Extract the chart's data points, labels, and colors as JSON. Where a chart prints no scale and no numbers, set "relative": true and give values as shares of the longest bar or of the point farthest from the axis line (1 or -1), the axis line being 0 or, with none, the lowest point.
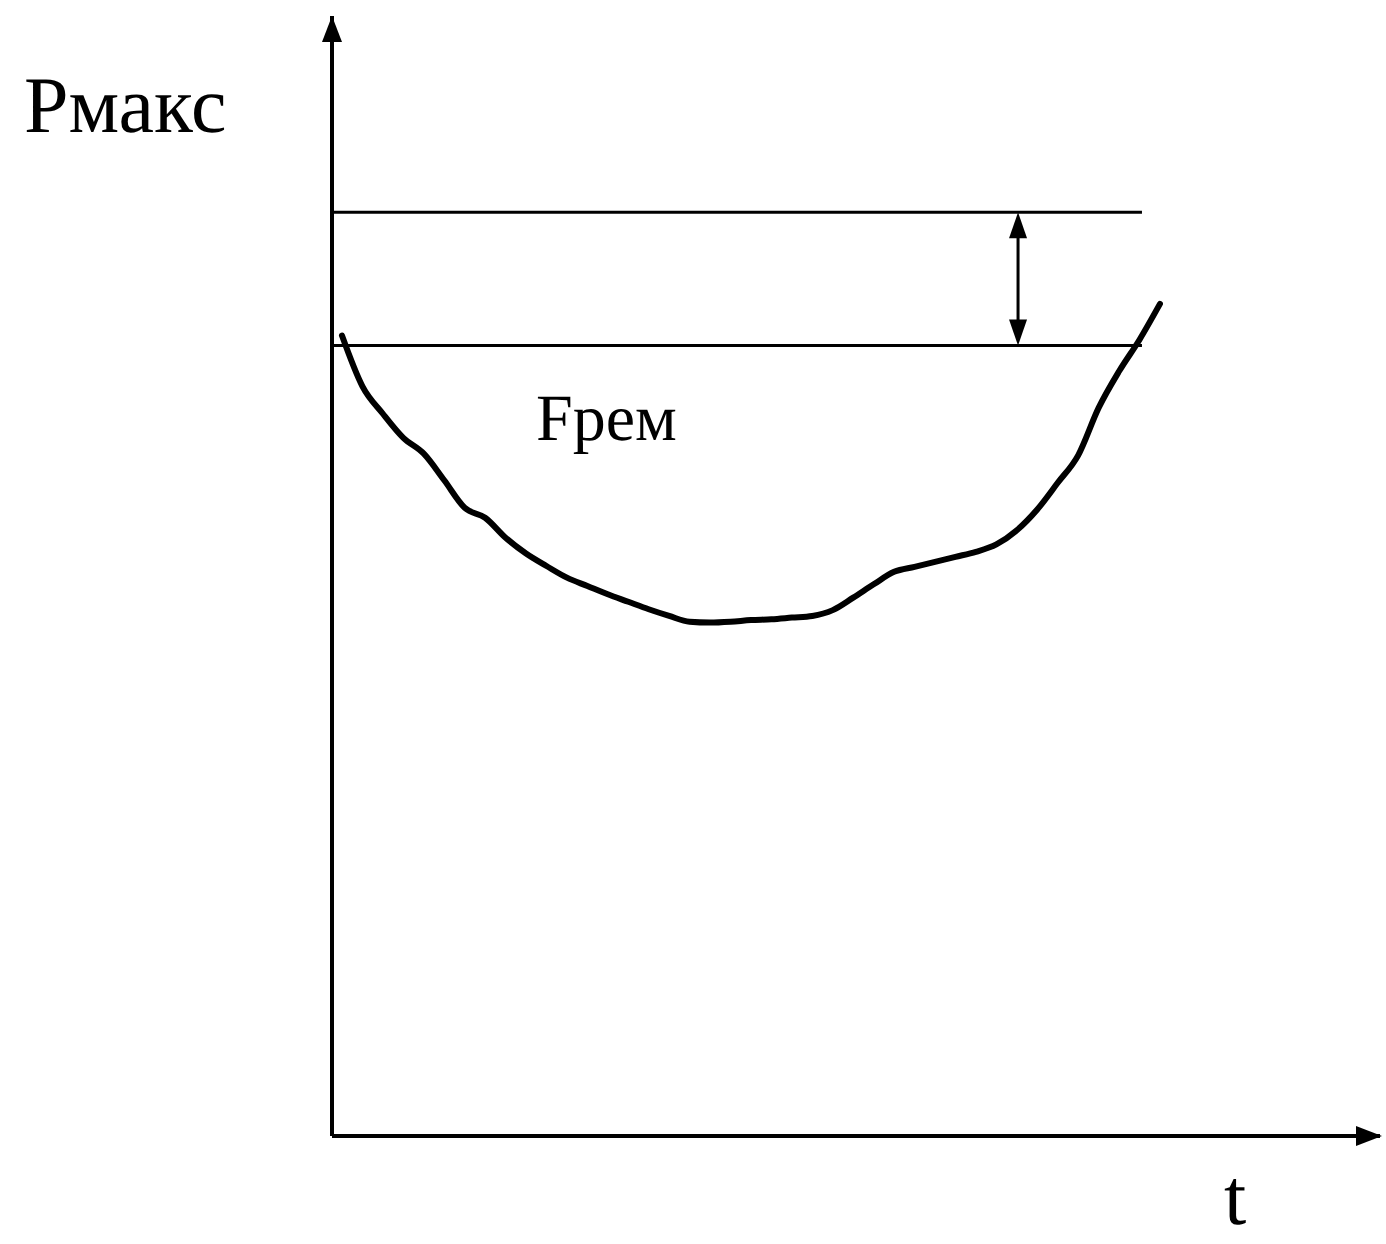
{
  "chart_data": {
    "type": "line",
    "xlabel": "t",
    "ylabel": "Рмакс",
    "annotations": [
      "Fрем"
    ],
    "relative": true,
    "categories": [
      null,
      null,
      null,
      null,
      null,
      null,
      null,
      null,
      null,
      null,
      null,
      null,
      null,
      null,
      null,
      null,
      null,
      null,
      null,
      null,
      null,
      null,
      null,
      null,
      null,
      null,
      null,
      null,
      null,
      null,
      null,
      null,
      null,
      null,
      null,
      null,
      null,
      null,
      null,
      null,
      null
    ],
    "values": [
      0.962,
      0.901,
      0.868,
      0.839,
      0.82,
      0.788,
      0.755,
      0.743,
      0.719,
      0.7,
      0.685,
      0.671,
      0.661,
      0.651,
      0.642,
      0.633,
      0.625,
      0.618,
      0.617,
      0.618,
      0.62,
      0.621,
      0.623,
      0.625,
      0.632,
      0.647,
      0.663,
      0.678,
      0.684,
      0.69,
      0.696,
      0.702,
      0.711,
      0.728,
      0.753,
      0.785,
      0.818,
      0.875,
      0.919,
      0.957,
      1
    ],
    "color": "#000000",
    "ref_lines": [
      {
        "axis": "y",
        "value": 1.11,
        "color": "#000000"
      },
      {
        "axis": "y",
        "value": 0.95,
        "color": "#000000"
      }
    ]
  }
}
